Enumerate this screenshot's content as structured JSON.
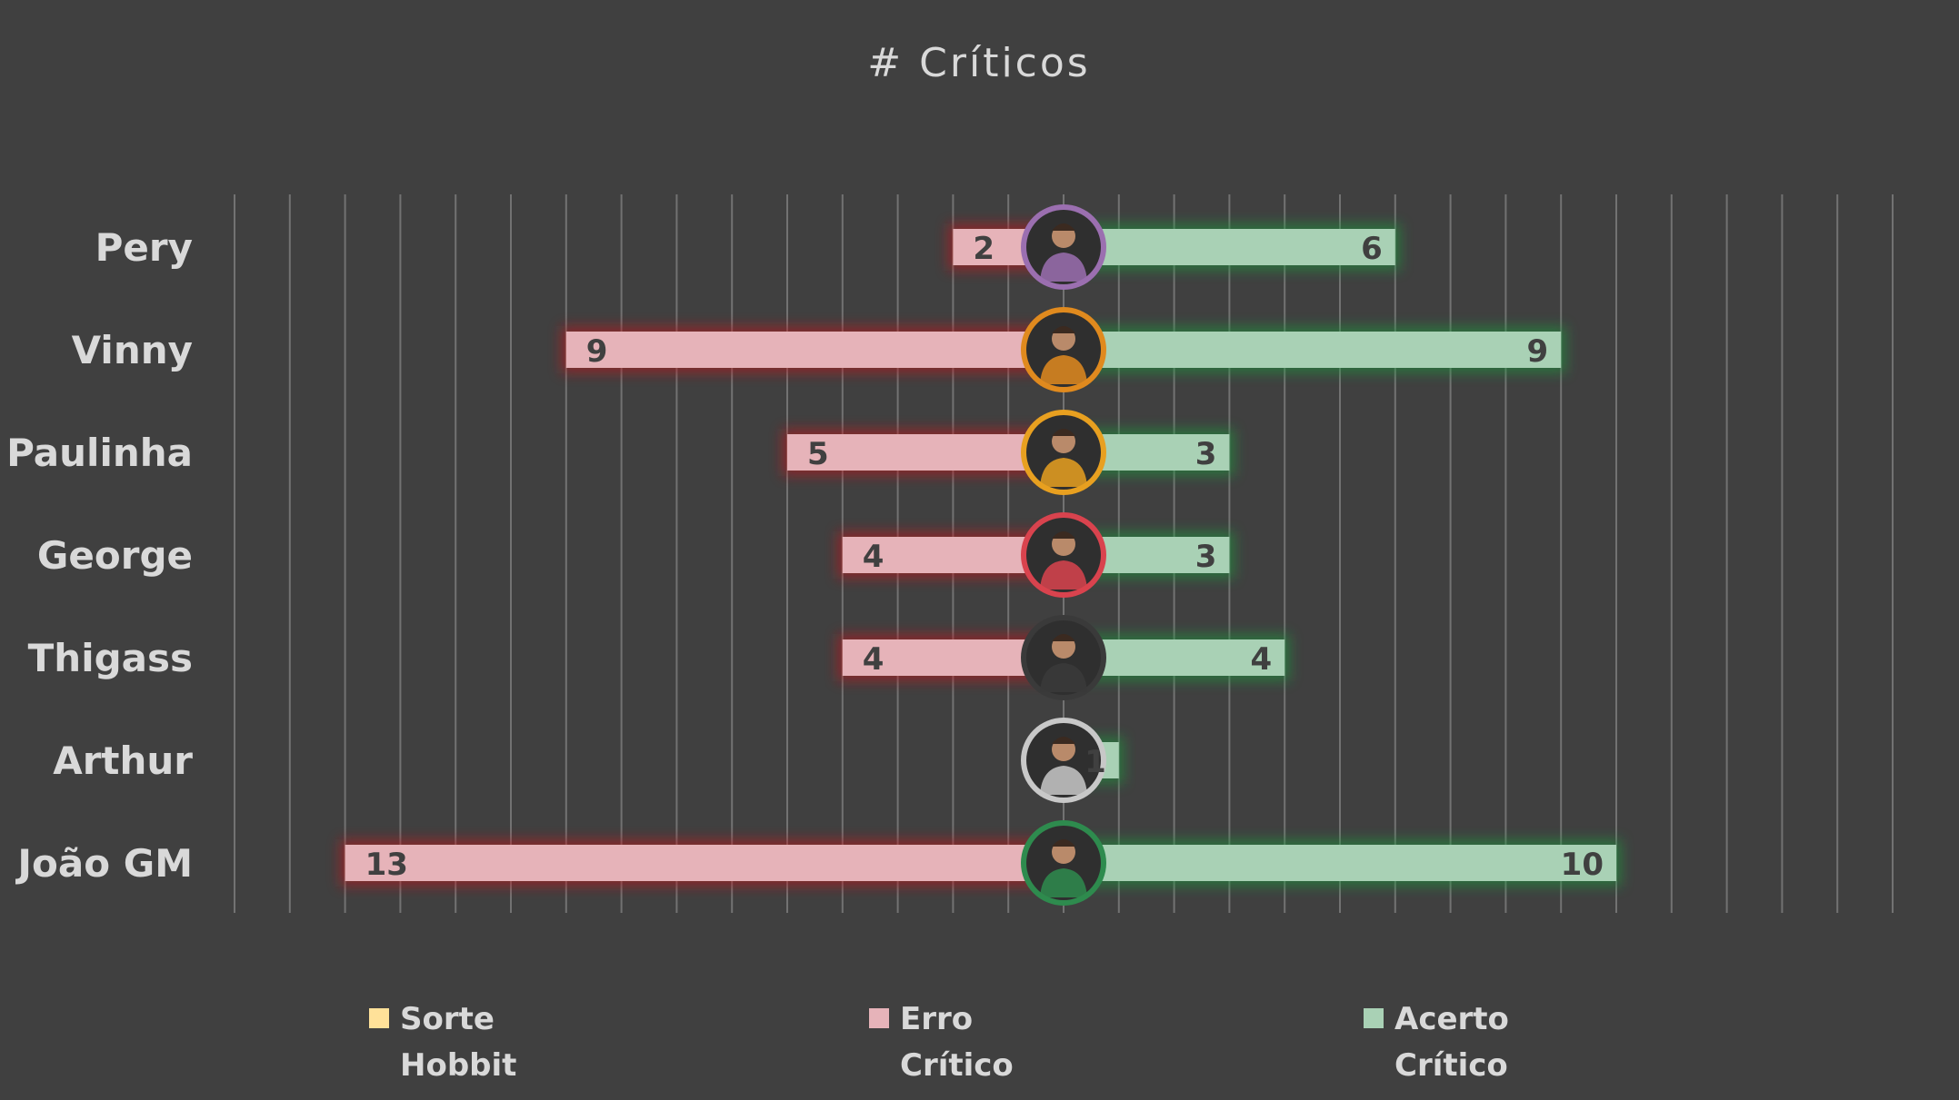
{
  "chart_data": {
    "type": "bar",
    "orientation": "horizontal-diverging",
    "title": "# Críticos",
    "categories": [
      "Pery",
      "Vinny",
      "Paulinha",
      "George",
      "Thigass",
      "Arthur",
      "João GM"
    ],
    "series": [
      {
        "name": "Sorte Hobbit",
        "values": [
          0,
          0,
          0,
          0,
          0,
          0,
          0
        ],
        "color": "#ffe199"
      },
      {
        "name": "Erro Crítico",
        "values": [
          2,
          9,
          5,
          4,
          4,
          0,
          13
        ],
        "color": "#e6b3b9"
      },
      {
        "name": "Acerto Crítico",
        "values": [
          6,
          9,
          3,
          3,
          4,
          1,
          10
        ],
        "color": "#a9d1b5"
      }
    ],
    "avatar_ring_colors": [
      "#9b6fb0",
      "#e08a1e",
      "#e8a020",
      "#d9434e",
      "#3a3a3a",
      "#c8c8c8",
      "#2e8b4e"
    ],
    "xlim": [
      -15,
      15
    ],
    "grid": true,
    "legend": "bottom"
  }
}
